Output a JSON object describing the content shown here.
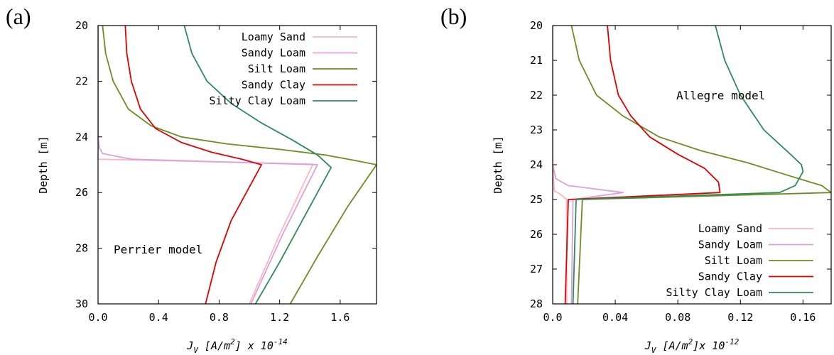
{
  "chart_data": [
    {
      "type": "line",
      "panel_label": "(a)",
      "annotation": "Perrier model",
      "ylabel": "Depth [m]",
      "xlabel": {
        "prefix": "J",
        "sub": "V",
        "mid": " [A/m",
        "sup1": "2",
        "suffix": "] x 10",
        "sup2": "-14"
      },
      "xlim": [
        0,
        1.84
      ],
      "ylim": [
        20,
        30
      ],
      "y_inverted": true,
      "xticks": [
        0.0,
        0.4,
        0.8,
        1.2,
        1.6
      ],
      "xtick_labels": [
        "0.0",
        "0.4",
        "0.8",
        "1.2",
        "1.6"
      ],
      "yticks": [
        20,
        22,
        24,
        26,
        28,
        30
      ],
      "ytick_labels": [
        "20",
        "22",
        "24",
        "26",
        "28",
        "30"
      ],
      "legend_position": "top-right",
      "series": [
        {
          "name": "Loamy Sand",
          "color": "#ffb6c1",
          "x": [
            0.0,
            0.0,
            0.0,
            0.0,
            1.42,
            1.2,
            1.0
          ],
          "y": [
            20,
            22,
            24,
            24.8,
            24.98,
            27.5,
            30
          ]
        },
        {
          "name": "Sandy Loam",
          "color": "#dda0dd",
          "x": [
            0.0,
            0.0,
            0.0,
            0.01,
            0.03,
            0.22,
            1.45,
            1.22,
            1.01
          ],
          "y": [
            20,
            22,
            24,
            24.4,
            24.6,
            24.8,
            25.0,
            27.5,
            30
          ]
        },
        {
          "name": "Silt Loam",
          "color": "#6b8e23",
          "x": [
            0.03,
            0.05,
            0.1,
            0.2,
            0.35,
            0.55,
            0.85,
            1.2,
            1.5,
            1.7,
            1.84,
            1.65,
            1.45,
            1.27
          ],
          "y": [
            20,
            21,
            22,
            23,
            23.6,
            24.0,
            24.25,
            24.45,
            24.65,
            24.85,
            25.0,
            26.5,
            28.3,
            30
          ]
        },
        {
          "name": "Sandy Clay",
          "color": "#e00000",
          "x": [
            0.18,
            0.19,
            0.22,
            0.28,
            0.38,
            0.55,
            0.75,
            0.95,
            1.08,
            0.88,
            0.78,
            0.71
          ],
          "y": [
            20,
            21,
            22,
            23,
            23.7,
            24.2,
            24.55,
            24.8,
            25.0,
            27.0,
            28.5,
            30
          ]
        },
        {
          "name": "Silty Clay Loam",
          "color": "#2e8b57",
          "x": [
            0.57,
            0.62,
            0.72,
            0.88,
            1.08,
            1.28,
            1.45,
            1.54,
            1.35,
            1.2,
            1.04
          ],
          "y": [
            20,
            21,
            22,
            22.8,
            23.5,
            24.1,
            24.65,
            25.1,
            27.0,
            28.5,
            30
          ]
        }
      ]
    },
    {
      "type": "line",
      "panel_label": "(b)",
      "annotation": "Allegre model",
      "ylabel": "Depth [m]",
      "xlabel": {
        "prefix": "J",
        "sub": "V",
        "mid": " [A/m",
        "sup1": "2",
        "suffix": "]x 10",
        "sup2": "-12"
      },
      "xlim": [
        0,
        0.178
      ],
      "ylim": [
        20,
        28
      ],
      "y_inverted": true,
      "xticks": [
        0.0,
        0.04,
        0.08,
        0.12,
        0.16
      ],
      "xtick_labels": [
        "0.0",
        "0.04",
        "0.08",
        "0.12",
        "0.16"
      ],
      "yticks": [
        20,
        21,
        22,
        23,
        24,
        25,
        26,
        27,
        28
      ],
      "ytick_labels": [
        "20",
        "21",
        "22",
        "23",
        "24",
        "25",
        "26",
        "27",
        "28"
      ],
      "legend_position": "bottom-right",
      "series": [
        {
          "name": "Loamy Sand",
          "color": "#ffb6c1",
          "x": [
            0.0,
            0.0,
            0.0,
            0.001,
            0.005,
            0.009,
            0.009
          ],
          "y": [
            20,
            22,
            24,
            24.75,
            24.85,
            25.0,
            28
          ]
        },
        {
          "name": "Sandy Loam",
          "color": "#dda0dd",
          "x": [
            0.0,
            0.0,
            0.0,
            0.002,
            0.01,
            0.045,
            0.013,
            0.012
          ],
          "y": [
            20,
            22,
            24,
            24.4,
            24.6,
            24.8,
            25.0,
            28
          ]
        },
        {
          "name": "Silt Loam",
          "color": "#6b8e23",
          "x": [
            0.012,
            0.017,
            0.028,
            0.045,
            0.068,
            0.095,
            0.125,
            0.15,
            0.172,
            0.178,
            0.019,
            0.016
          ],
          "y": [
            20,
            21,
            22,
            22.6,
            23.2,
            23.6,
            23.95,
            24.3,
            24.6,
            24.8,
            25.0,
            28
          ]
        },
        {
          "name": "Sandy Clay",
          "color": "#e00000",
          "x": [
            0.035,
            0.037,
            0.042,
            0.05,
            0.062,
            0.08,
            0.097,
            0.106,
            0.107,
            0.01,
            0.008
          ],
          "y": [
            20,
            21,
            22,
            22.6,
            23.2,
            23.7,
            24.1,
            24.5,
            24.8,
            25.0,
            28
          ]
        },
        {
          "name": "Silty Clay Loam",
          "color": "#2e8b57",
          "x": [
            0.104,
            0.11,
            0.12,
            0.135,
            0.152,
            0.159,
            0.16,
            0.155,
            0.145,
            0.015,
            0.013
          ],
          "y": [
            20,
            21,
            22,
            23,
            23.7,
            24.0,
            24.2,
            24.6,
            24.8,
            25.0,
            28
          ]
        }
      ]
    }
  ]
}
